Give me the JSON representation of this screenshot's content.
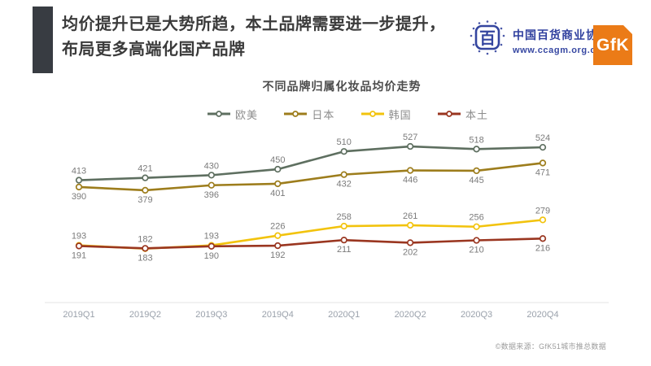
{
  "header": {
    "title_line1": "均价提升已是大势所趋，本土品牌需要进一步提升，",
    "title_line2": "布局更多高端化国产品牌",
    "accent_color": "#383c42"
  },
  "logos": {
    "ccagm": {
      "emblem_char": "百",
      "org_name": "中国百货商业协会",
      "website": "www.ccagm.org.cn",
      "color": "#34459f"
    },
    "gfk": {
      "label": "GfK",
      "color": "#eb7b17"
    }
  },
  "chart_data": {
    "type": "line",
    "title": "不同品牌归属化妆品均价走势",
    "categories": [
      "2019Q1",
      "2019Q2",
      "2019Q3",
      "2019Q4",
      "2020Q1",
      "2020Q2",
      "2020Q3",
      "2020Q4"
    ],
    "series": [
      {
        "key": "europe_us",
        "name": "欧美",
        "color": "#5e6f60",
        "label_position": "above",
        "values": [
          413,
          421,
          430,
          450,
          510,
          527,
          518,
          524
        ]
      },
      {
        "key": "japan",
        "name": "日本",
        "color": "#9d7d1c",
        "label_position": "below",
        "values": [
          390,
          379,
          396,
          401,
          432,
          446,
          445,
          471
        ]
      },
      {
        "key": "korea",
        "name": "韩国",
        "color": "#f2c30d",
        "label_position": "above",
        "values": [
          193,
          182,
          193,
          226,
          258,
          261,
          256,
          279
        ]
      },
      {
        "key": "local",
        "name": "本土",
        "color": "#9a3620",
        "label_position": "below",
        "values": [
          191,
          183,
          190,
          192,
          211,
          202,
          210,
          216
        ]
      }
    ],
    "ylim": [
      0,
      582
    ],
    "grid": false,
    "legend_position": "top",
    "marker": "open-circle",
    "value_label_color": "#7b7b7b",
    "axis_label_color": "#9aa1ab",
    "axis_line_color": "#e3e3e3"
  },
  "footer": {
    "source": "©数据来源：GfK51城市推总数据"
  }
}
